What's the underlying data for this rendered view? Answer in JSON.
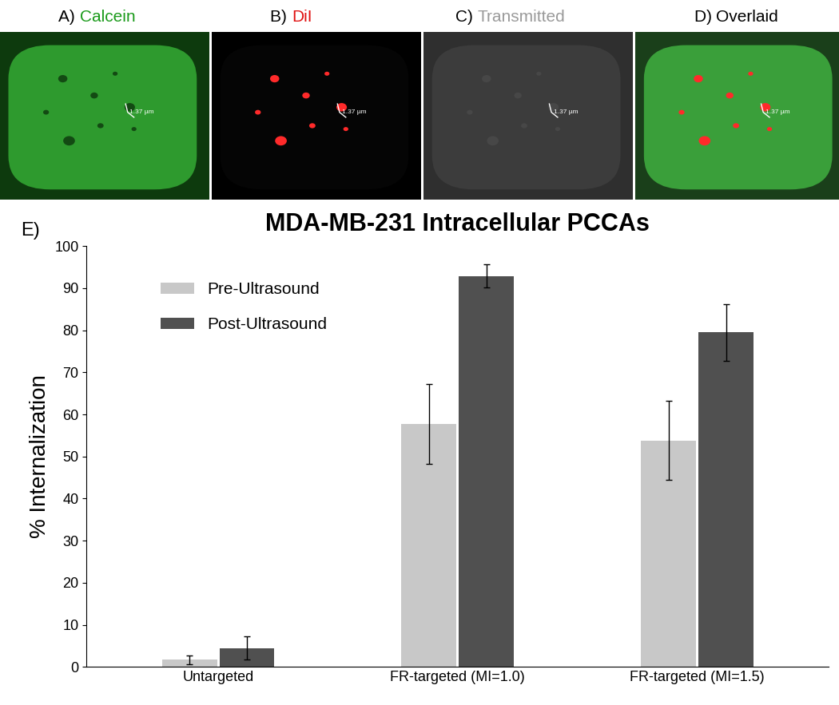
{
  "panels": [
    {
      "letter": "A)",
      "name": "Calcein",
      "color": "#1a9a1a"
    },
    {
      "letter": "B)",
      "name": "DiI",
      "color": "#e01010"
    },
    {
      "letter": "C)",
      "name": "Transmitted",
      "color": "#9a9a9a"
    },
    {
      "letter": "D)",
      "name": "Overlaid",
      "color": "#000000"
    }
  ],
  "scale_bar": "1.37 µm",
  "chart_label": "E)",
  "chart_data": {
    "type": "bar",
    "title": "MDA-MB-231 Intracellular PCCAs",
    "y_label": "% Internalization",
    "categories": [
      "Untargeted",
      "FR-targeted (MI=1.0)",
      "FR-targeted (MI=1.5)"
    ],
    "series": [
      {
        "name": "Pre-Ultrasound",
        "color": "#c8c8c8",
        "values": [
          1.7,
          57.7,
          53.8
        ],
        "errors": [
          1.0,
          9.5,
          9.4
        ]
      },
      {
        "name": "Post-Ultrasound",
        "color": "#505050",
        "values": [
          4.5,
          92.9,
          79.5
        ],
        "errors": [
          2.8,
          2.7,
          6.7
        ]
      }
    ],
    "ylim": [
      0,
      100
    ],
    "yticks": [
      0,
      10,
      20,
      30,
      40,
      50,
      60,
      70,
      80,
      90,
      100
    ],
    "legend": "upper left",
    "grid": false
  }
}
